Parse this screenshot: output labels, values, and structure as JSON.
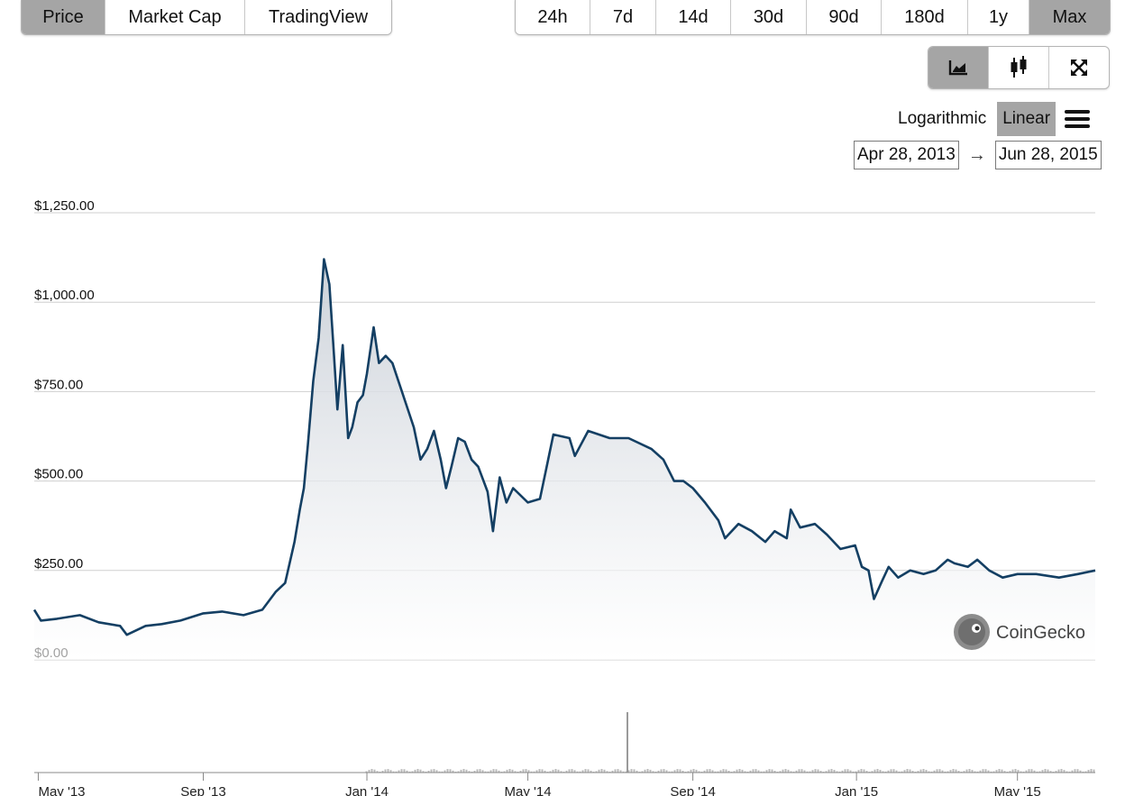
{
  "view_tabs": [
    "Price",
    "Market Cap",
    "TradingView"
  ],
  "active_view": "Price",
  "range_tabs": [
    "24h",
    "7d",
    "14d",
    "30d",
    "90d",
    "180d",
    "1y",
    "Max"
  ],
  "active_range": "Max",
  "chart_type_buttons": [
    "line-chart-icon",
    "candlestick-icon",
    "fullscreen-icon"
  ],
  "active_chart_type": "line-chart-icon",
  "scale": {
    "logarithmic": "Logarithmic",
    "linear": "Linear",
    "active": "Linear"
  },
  "date_range": {
    "from": "Apr 28, 2013",
    "arrow": "→",
    "to": "Jun 28, 2015"
  },
  "watermark": "CoinGecko",
  "colors": {
    "line": "#143f63",
    "active_button": "#a5a5a5",
    "area_top": "#c9cfd7"
  },
  "chart_data": {
    "type": "area",
    "ylim": [
      0,
      1250
    ],
    "y_ticks": [
      0,
      250,
      500,
      750,
      1000,
      1250
    ],
    "y_tick_labels": [
      "$0.00",
      "$250.00",
      "$500.00",
      "$750.00",
      "$1,000.00",
      "$1,250.00"
    ],
    "x_tick_labels": [
      "May '13",
      "Sep '13",
      "Jan '14",
      "May '14",
      "Sep '14",
      "Jan '15",
      "May '15"
    ],
    "x_ticks": [
      "2013-05-01",
      "2013-09-01",
      "2014-01-01",
      "2014-05-01",
      "2014-09-01",
      "2015-01-01",
      "2015-05-01"
    ],
    "xlim": [
      "2013-04-28",
      "2015-06-28"
    ],
    "series": [
      {
        "x": [
          "2013-04-28",
          "2013-05-03",
          "2013-05-15",
          "2013-06-01",
          "2013-06-15",
          "2013-07-01",
          "2013-07-06",
          "2013-07-20",
          "2013-08-01",
          "2013-08-15",
          "2013-09-01",
          "2013-09-15",
          "2013-10-01",
          "2013-10-15",
          "2013-10-25",
          "2013-11-01",
          "2013-11-08",
          "2013-11-12",
          "2013-11-15",
          "2013-11-18",
          "2013-11-22",
          "2013-11-26",
          "2013-11-30",
          "2013-12-04",
          "2013-12-07",
          "2013-12-10",
          "2013-12-14",
          "2013-12-18",
          "2013-12-21",
          "2013-12-25",
          "2013-12-29",
          "2014-01-01",
          "2014-01-06",
          "2014-01-10",
          "2014-01-15",
          "2014-01-20",
          "2014-01-28",
          "2014-02-05",
          "2014-02-10",
          "2014-02-15",
          "2014-02-20",
          "2014-02-25",
          "2014-03-01",
          "2014-03-05",
          "2014-03-10",
          "2014-03-15",
          "2014-03-20",
          "2014-03-25",
          "2014-04-01",
          "2014-04-05",
          "2014-04-10",
          "2014-04-15",
          "2014-04-20",
          "2014-05-01",
          "2014-05-10",
          "2014-05-20",
          "2014-06-01",
          "2014-06-05",
          "2014-06-15",
          "2014-07-01",
          "2014-07-15",
          "2014-08-01",
          "2014-08-10",
          "2014-08-18",
          "2014-08-25",
          "2014-09-01",
          "2014-09-10",
          "2014-09-20",
          "2014-09-25",
          "2014-10-05",
          "2014-10-15",
          "2014-10-25",
          "2014-11-01",
          "2014-11-10",
          "2014-11-13",
          "2014-11-20",
          "2014-12-01",
          "2014-12-10",
          "2014-12-20",
          "2014-12-31",
          "2015-01-05",
          "2015-01-10",
          "2015-01-14",
          "2015-01-20",
          "2015-01-25",
          "2015-02-01",
          "2015-02-10",
          "2015-02-20",
          "2015-03-01",
          "2015-03-10",
          "2015-03-15",
          "2015-03-25",
          "2015-04-01",
          "2015-04-10",
          "2015-04-20",
          "2015-05-01",
          "2015-05-15",
          "2015-06-01",
          "2015-06-15",
          "2015-06-28"
        ],
        "values": [
          140,
          110,
          115,
          125,
          105,
          95,
          70,
          95,
          100,
          110,
          130,
          135,
          125,
          140,
          190,
          215,
          330,
          420,
          480,
          600,
          780,
          900,
          1120,
          1050,
          880,
          700,
          880,
          620,
          650,
          720,
          740,
          800,
          930,
          830,
          850,
          830,
          740,
          650,
          560,
          590,
          640,
          560,
          480,
          540,
          620,
          610,
          560,
          540,
          470,
          360,
          510,
          440,
          480,
          440,
          450,
          630,
          620,
          570,
          640,
          620,
          620,
          590,
          560,
          500,
          500,
          480,
          440,
          390,
          340,
          380,
          360,
          330,
          360,
          340,
          420,
          370,
          380,
          350,
          310,
          320,
          260,
          250,
          170,
          220,
          260,
          230,
          250,
          240,
          250,
          280,
          270,
          260,
          280,
          250,
          230,
          240,
          240,
          230,
          240,
          250
        ]
      }
    ]
  }
}
